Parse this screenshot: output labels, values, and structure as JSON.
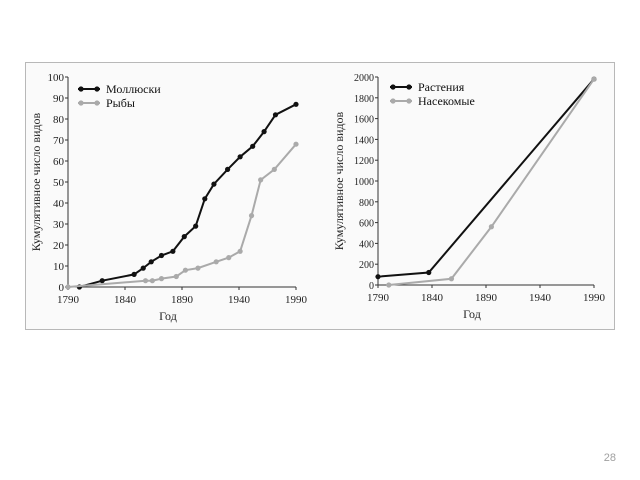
{
  "slide": {
    "page_number": "28"
  },
  "chart_data": [
    {
      "type": "line",
      "title": "",
      "xlabel": "Год",
      "ylabel": "Кумулятивное число видов",
      "xlim": [
        1790,
        1990
      ],
      "ylim": [
        0,
        100
      ],
      "xticks": [
        1790,
        1840,
        1890,
        1940,
        1990
      ],
      "yticks": [
        0,
        10,
        20,
        30,
        40,
        50,
        60,
        70,
        80,
        90,
        100
      ],
      "grid": false,
      "legend": "top-left",
      "series": [
        {
          "name": "Моллюски",
          "color": "#111111",
          "points": [
            [
              1800,
              0
            ],
            [
              1820,
              3
            ],
            [
              1848,
              6
            ],
            [
              1856,
              9
            ],
            [
              1863,
              12
            ],
            [
              1872,
              15
            ],
            [
              1882,
              17
            ],
            [
              1892,
              24
            ],
            [
              1902,
              29
            ],
            [
              1910,
              42
            ],
            [
              1918,
              49
            ],
            [
              1930,
              56
            ],
            [
              1941,
              62
            ],
            [
              1952,
              67
            ],
            [
              1962,
              74
            ],
            [
              1972,
              82
            ],
            [
              1990,
              87
            ]
          ]
        },
        {
          "name": "Рыбы",
          "color": "#aaaaaa",
          "points": [
            [
              1790,
              0
            ],
            [
              1858,
              3
            ],
            [
              1864,
              3
            ],
            [
              1872,
              4
            ],
            [
              1885,
              5
            ],
            [
              1893,
              8
            ],
            [
              1904,
              9
            ],
            [
              1920,
              12
            ],
            [
              1931,
              14
            ],
            [
              1941,
              17
            ],
            [
              1951,
              34
            ],
            [
              1959,
              51
            ],
            [
              1971,
              56
            ],
            [
              1990,
              68
            ]
          ]
        }
      ]
    },
    {
      "type": "line",
      "title": "",
      "xlabel": "Год",
      "ylabel": "Кумулятивное число видов",
      "xlim": [
        1790,
        1990
      ],
      "ylim": [
        0,
        2000
      ],
      "xticks": [
        1790,
        1840,
        1890,
        1940,
        1990
      ],
      "yticks": [
        0,
        200,
        400,
        600,
        800,
        1000,
        1200,
        1400,
        1600,
        1800,
        2000
      ],
      "grid": false,
      "legend": "top-left",
      "series": [
        {
          "name": "Растения",
          "color": "#111111",
          "points": [
            [
              1790,
              80
            ],
            [
              1837,
              120
            ],
            [
              1990,
              1980
            ]
          ]
        },
        {
          "name": "Насекомые",
          "color": "#aaaaaa",
          "points": [
            [
              1800,
              0
            ],
            [
              1858,
              60
            ],
            [
              1895,
              560
            ],
            [
              1990,
              1980
            ]
          ]
        }
      ]
    }
  ]
}
